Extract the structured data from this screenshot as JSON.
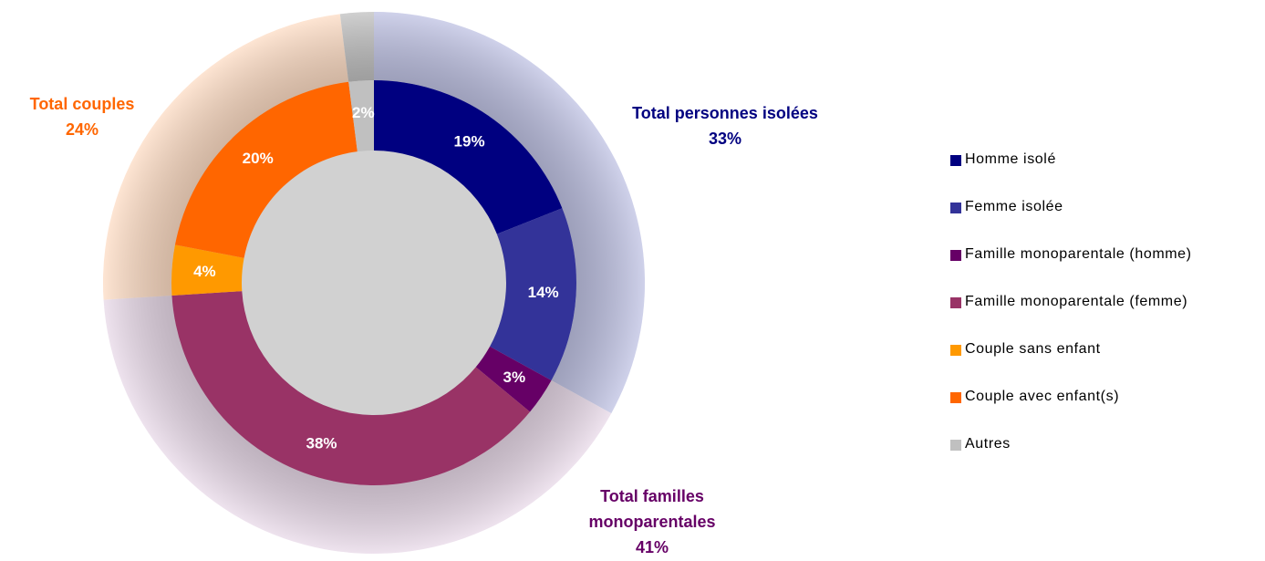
{
  "chart_data": {
    "type": "donut",
    "categories": [
      "Homme isolé",
      "Femme isolée",
      "Famille monoparentale (homme)",
      "Famille monoparentale (femme)",
      "Couple sans enfant",
      "Couple avec enfant(s)",
      "Autres"
    ],
    "values": [
      19,
      14,
      3,
      38,
      4,
      20,
      2
    ],
    "value_labels": [
      "19%",
      "14%",
      "3%",
      "38%",
      "4%",
      "20%",
      "2%"
    ],
    "colors": [
      "#000080",
      "#333399",
      "#660066",
      "#993366",
      "#ff9900",
      "#ff6600",
      "#c0c0c0"
    ],
    "outer": {
      "categories": [
        "Total personnes isolées",
        "Total familles monoparentales",
        "Total couples",
        null
      ],
      "values": [
        33,
        41,
        24,
        2
      ],
      "value_labels": [
        "33%",
        "41%",
        "24%",
        null
      ],
      "colors": [
        "#bfc2e3",
        "#e8d9e8",
        "#fddcc4",
        "#c0c0c0"
      ],
      "label_colors": [
        "#000080",
        "#660066",
        "#ff6600",
        null
      ]
    },
    "legend": "right"
  }
}
